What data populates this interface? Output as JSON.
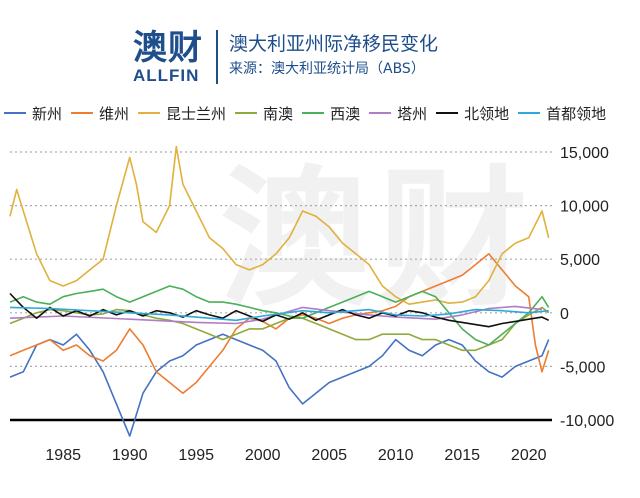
{
  "header": {
    "logo_cn": "澳财",
    "logo_en": "ALLFIN",
    "title": "澳大利亚州际净移民变化",
    "subtitle": "来源：澳大利亚统计局（ABS）",
    "watermark": "澳财"
  },
  "chart_data": {
    "type": "line",
    "title": "澳大利亚州际净移民变化",
    "xlabel": "",
    "ylabel": "",
    "xlim": [
      1981,
      2021.75
    ],
    "ylim": [
      -10000,
      15000
    ],
    "x_ticks": [
      1985,
      1990,
      1995,
      2000,
      2005,
      2010,
      2015,
      2020
    ],
    "y_ticks": [
      -10000,
      -5000,
      0,
      5000,
      10000,
      15000
    ],
    "y_tick_labels": [
      "-10,000",
      "-5,000",
      "0",
      "5,000",
      "10,000",
      "15,000"
    ],
    "grid": "horizontal dotted",
    "legend_position": "top",
    "series": [
      {
        "name": "新州",
        "color": "#4472c4",
        "points": [
          [
            1981,
            -6000
          ],
          [
            1982,
            -5500
          ],
          [
            1983,
            -3000
          ],
          [
            1984,
            -2500
          ],
          [
            1985,
            -3000
          ],
          [
            1986,
            -2000
          ],
          [
            1987,
            -3500
          ],
          [
            1988,
            -5500
          ],
          [
            1989,
            -8500
          ],
          [
            1990,
            -11500
          ],
          [
            1991,
            -7500
          ],
          [
            1992,
            -5500
          ],
          [
            1993,
            -4500
          ],
          [
            1994,
            -4000
          ],
          [
            1995,
            -3000
          ],
          [
            1996,
            -2500
          ],
          [
            1997,
            -2000
          ],
          [
            1998,
            -2500
          ],
          [
            1999,
            -3000
          ],
          [
            2000,
            -3500
          ],
          [
            2001,
            -4500
          ],
          [
            2002,
            -7000
          ],
          [
            2003,
            -8500
          ],
          [
            2004,
            -7500
          ],
          [
            2005,
            -6500
          ],
          [
            2006,
            -6000
          ],
          [
            2007,
            -5500
          ],
          [
            2008,
            -5000
          ],
          [
            2009,
            -4000
          ],
          [
            2010,
            -2500
          ],
          [
            2011,
            -3500
          ],
          [
            2012,
            -4000
          ],
          [
            2013,
            -3000
          ],
          [
            2014,
            -2500
          ],
          [
            2015,
            -3000
          ],
          [
            2016,
            -4500
          ],
          [
            2017,
            -5500
          ],
          [
            2018,
            -6000
          ],
          [
            2019,
            -5000
          ],
          [
            2020,
            -4500
          ],
          [
            2021,
            -4000
          ],
          [
            2021.5,
            -2500
          ]
        ]
      },
      {
        "name": "维州",
        "color": "#ed7d31",
        "points": [
          [
            1981,
            -4000
          ],
          [
            1982,
            -3500
          ],
          [
            1983,
            -3000
          ],
          [
            1984,
            -2500
          ],
          [
            1985,
            -3500
          ],
          [
            1986,
            -3000
          ],
          [
            1987,
            -4000
          ],
          [
            1988,
            -4500
          ],
          [
            1989,
            -3500
          ],
          [
            1990,
            -1500
          ],
          [
            1991,
            -3000
          ],
          [
            1992,
            -5500
          ],
          [
            1993,
            -6500
          ],
          [
            1994,
            -7500
          ],
          [
            1995,
            -6500
          ],
          [
            1996,
            -5000
          ],
          [
            1997,
            -3500
          ],
          [
            1998,
            -1500
          ],
          [
            1999,
            -500
          ],
          [
            2000,
            -800
          ],
          [
            2001,
            -1500
          ],
          [
            2002,
            -500
          ],
          [
            2003,
            -200
          ],
          [
            2004,
            -500
          ],
          [
            2005,
            -1000
          ],
          [
            2006,
            -500
          ],
          [
            2007,
            -200
          ],
          [
            2008,
            0
          ],
          [
            2009,
            200
          ],
          [
            2010,
            600
          ],
          [
            2011,
            1500
          ],
          [
            2012,
            2000
          ],
          [
            2013,
            2500
          ],
          [
            2014,
            3000
          ],
          [
            2015,
            3500
          ],
          [
            2016,
            4500
          ],
          [
            2017,
            5500
          ],
          [
            2018,
            4000
          ],
          [
            2019,
            2500
          ],
          [
            2020,
            1500
          ],
          [
            2020.5,
            -3000
          ],
          [
            2021,
            -5500
          ],
          [
            2021.5,
            -3500
          ]
        ]
      },
      {
        "name": "昆士兰州",
        "color": "#e0b13c",
        "points": [
          [
            1981,
            9000
          ],
          [
            1981.5,
            11500
          ],
          [
            1982,
            9500
          ],
          [
            1983,
            5500
          ],
          [
            1984,
            3000
          ],
          [
            1985,
            2500
          ],
          [
            1986,
            3000
          ],
          [
            1987,
            4000
          ],
          [
            1988,
            5000
          ],
          [
            1989,
            10000
          ],
          [
            1990,
            14500
          ],
          [
            1990.5,
            12000
          ],
          [
            1991,
            8500
          ],
          [
            1992,
            7500
          ],
          [
            1993,
            10000
          ],
          [
            1993.5,
            15500
          ],
          [
            1994,
            12000
          ],
          [
            1995,
            9500
          ],
          [
            1996,
            7000
          ],
          [
            1997,
            6000
          ],
          [
            1998,
            4500
          ],
          [
            1999,
            4000
          ],
          [
            2000,
            4500
          ],
          [
            2001,
            5500
          ],
          [
            2002,
            7000
          ],
          [
            2003,
            9500
          ],
          [
            2004,
            9000
          ],
          [
            2005,
            8000
          ],
          [
            2006,
            6500
          ],
          [
            2007,
            5500
          ],
          [
            2008,
            4500
          ],
          [
            2009,
            2500
          ],
          [
            2010,
            1500
          ],
          [
            2011,
            800
          ],
          [
            2012,
            1000
          ],
          [
            2013,
            1200
          ],
          [
            2014,
            900
          ],
          [
            2015,
            1000
          ],
          [
            2016,
            1500
          ],
          [
            2017,
            3000
          ],
          [
            2018,
            5500
          ],
          [
            2019,
            6500
          ],
          [
            2020,
            7000
          ],
          [
            2021,
            9500
          ],
          [
            2021.5,
            7000
          ]
        ]
      },
      {
        "name": "南澳",
        "color": "#8faa3c",
        "points": [
          [
            1981,
            -1000
          ],
          [
            1982,
            -500
          ],
          [
            1983,
            0
          ],
          [
            1984,
            300
          ],
          [
            1985,
            200
          ],
          [
            1986,
            0
          ],
          [
            1987,
            -200
          ],
          [
            1988,
            -100
          ],
          [
            1989,
            300
          ],
          [
            1990,
            200
          ],
          [
            1991,
            -200
          ],
          [
            1992,
            -500
          ],
          [
            1993,
            -700
          ],
          [
            1994,
            -1000
          ],
          [
            1995,
            -1500
          ],
          [
            1996,
            -2000
          ],
          [
            1997,
            -2500
          ],
          [
            1998,
            -2000
          ],
          [
            1999,
            -1500
          ],
          [
            2000,
            -1500
          ],
          [
            2001,
            -1000
          ],
          [
            2002,
            -500
          ],
          [
            2003,
            -500
          ],
          [
            2004,
            -1000
          ],
          [
            2005,
            -1500
          ],
          [
            2006,
            -2000
          ],
          [
            2007,
            -2500
          ],
          [
            2008,
            -2500
          ],
          [
            2009,
            -2000
          ],
          [
            2010,
            -2000
          ],
          [
            2011,
            -2000
          ],
          [
            2012,
            -2500
          ],
          [
            2013,
            -2500
          ],
          [
            2014,
            -3000
          ],
          [
            2015,
            -3500
          ],
          [
            2016,
            -3500
          ],
          [
            2017,
            -3000
          ],
          [
            2018,
            -2500
          ],
          [
            2019,
            -1000
          ],
          [
            2020,
            -200
          ],
          [
            2021,
            500
          ],
          [
            2021.5,
            0
          ]
        ]
      },
      {
        "name": "西澳",
        "color": "#4caf5a",
        "points": [
          [
            1981,
            1000
          ],
          [
            1982,
            1500
          ],
          [
            1983,
            1000
          ],
          [
            1984,
            800
          ],
          [
            1985,
            1500
          ],
          [
            1986,
            1800
          ],
          [
            1987,
            2000
          ],
          [
            1988,
            2200
          ],
          [
            1989,
            1500
          ],
          [
            1990,
            1000
          ],
          [
            1991,
            1500
          ],
          [
            1992,
            2000
          ],
          [
            1993,
            2500
          ],
          [
            1994,
            2200
          ],
          [
            1995,
            1500
          ],
          [
            1996,
            1000
          ],
          [
            1997,
            1000
          ],
          [
            1998,
            800
          ],
          [
            1999,
            500
          ],
          [
            2000,
            200
          ],
          [
            2001,
            0
          ],
          [
            2002,
            -300
          ],
          [
            2003,
            -500
          ],
          [
            2004,
            0
          ],
          [
            2005,
            500
          ],
          [
            2006,
            1000
          ],
          [
            2007,
            1500
          ],
          [
            2008,
            2000
          ],
          [
            2009,
            1500
          ],
          [
            2010,
            1000
          ],
          [
            2011,
            1500
          ],
          [
            2012,
            2000
          ],
          [
            2013,
            1500
          ],
          [
            2014,
            0
          ],
          [
            2015,
            -1500
          ],
          [
            2016,
            -2500
          ],
          [
            2017,
            -3000
          ],
          [
            2018,
            -2000
          ],
          [
            2019,
            -1000
          ],
          [
            2020,
            0
          ],
          [
            2021,
            1500
          ],
          [
            2021.5,
            500
          ]
        ]
      },
      {
        "name": "塔州",
        "color": "#b07cc6",
        "points": [
          [
            1981,
            -500
          ],
          [
            1985,
            -300
          ],
          [
            1990,
            -600
          ],
          [
            1995,
            -900
          ],
          [
            1998,
            -1000
          ],
          [
            2000,
            -600
          ],
          [
            2003,
            500
          ],
          [
            2005,
            200
          ],
          [
            2008,
            -200
          ],
          [
            2010,
            -400
          ],
          [
            2013,
            -600
          ],
          [
            2015,
            -200
          ],
          [
            2017,
            400
          ],
          [
            2019,
            600
          ],
          [
            2021,
            300
          ]
        ]
      },
      {
        "name": "北领地",
        "color": "#111111",
        "points": [
          [
            1981,
            1800
          ],
          [
            1982,
            500
          ],
          [
            1983,
            -500
          ],
          [
            1984,
            500
          ],
          [
            1985,
            -300
          ],
          [
            1986,
            200
          ],
          [
            1987,
            -300
          ],
          [
            1988,
            300
          ],
          [
            1989,
            -200
          ],
          [
            1990,
            200
          ],
          [
            1991,
            -300
          ],
          [
            1992,
            200
          ],
          [
            1993,
            0
          ],
          [
            1994,
            -400
          ],
          [
            1995,
            200
          ],
          [
            1996,
            -200
          ],
          [
            1997,
            -500
          ],
          [
            1998,
            200
          ],
          [
            1999,
            -300
          ],
          [
            2000,
            -800
          ],
          [
            2001,
            -200
          ],
          [
            2002,
            -600
          ],
          [
            2003,
            0
          ],
          [
            2004,
            -700
          ],
          [
            2005,
            -200
          ],
          [
            2006,
            300
          ],
          [
            2007,
            -200
          ],
          [
            2008,
            -500
          ],
          [
            2009,
            0
          ],
          [
            2010,
            -300
          ],
          [
            2011,
            200
          ],
          [
            2012,
            0
          ],
          [
            2013,
            -400
          ],
          [
            2014,
            -700
          ],
          [
            2015,
            -900
          ],
          [
            2016,
            -1100
          ],
          [
            2017,
            -1300
          ],
          [
            2018,
            -1000
          ],
          [
            2019,
            -800
          ],
          [
            2020,
            -600
          ],
          [
            2021,
            -400
          ],
          [
            2021.5,
            -700
          ]
        ]
      },
      {
        "name": "首都领地",
        "color": "#2ea8d8",
        "points": [
          [
            1981,
            500
          ],
          [
            1984,
            400
          ],
          [
            1987,
            200
          ],
          [
            1990,
            0
          ],
          [
            1993,
            -200
          ],
          [
            1996,
            -500
          ],
          [
            1998,
            -700
          ],
          [
            2000,
            -300
          ],
          [
            2003,
            200
          ],
          [
            2005,
            0
          ],
          [
            2008,
            300
          ],
          [
            2010,
            -200
          ],
          [
            2012,
            -300
          ],
          [
            2014,
            -100
          ],
          [
            2016,
            300
          ],
          [
            2018,
            200
          ],
          [
            2020,
            0
          ],
          [
            2021.5,
            200
          ]
        ]
      }
    ]
  }
}
